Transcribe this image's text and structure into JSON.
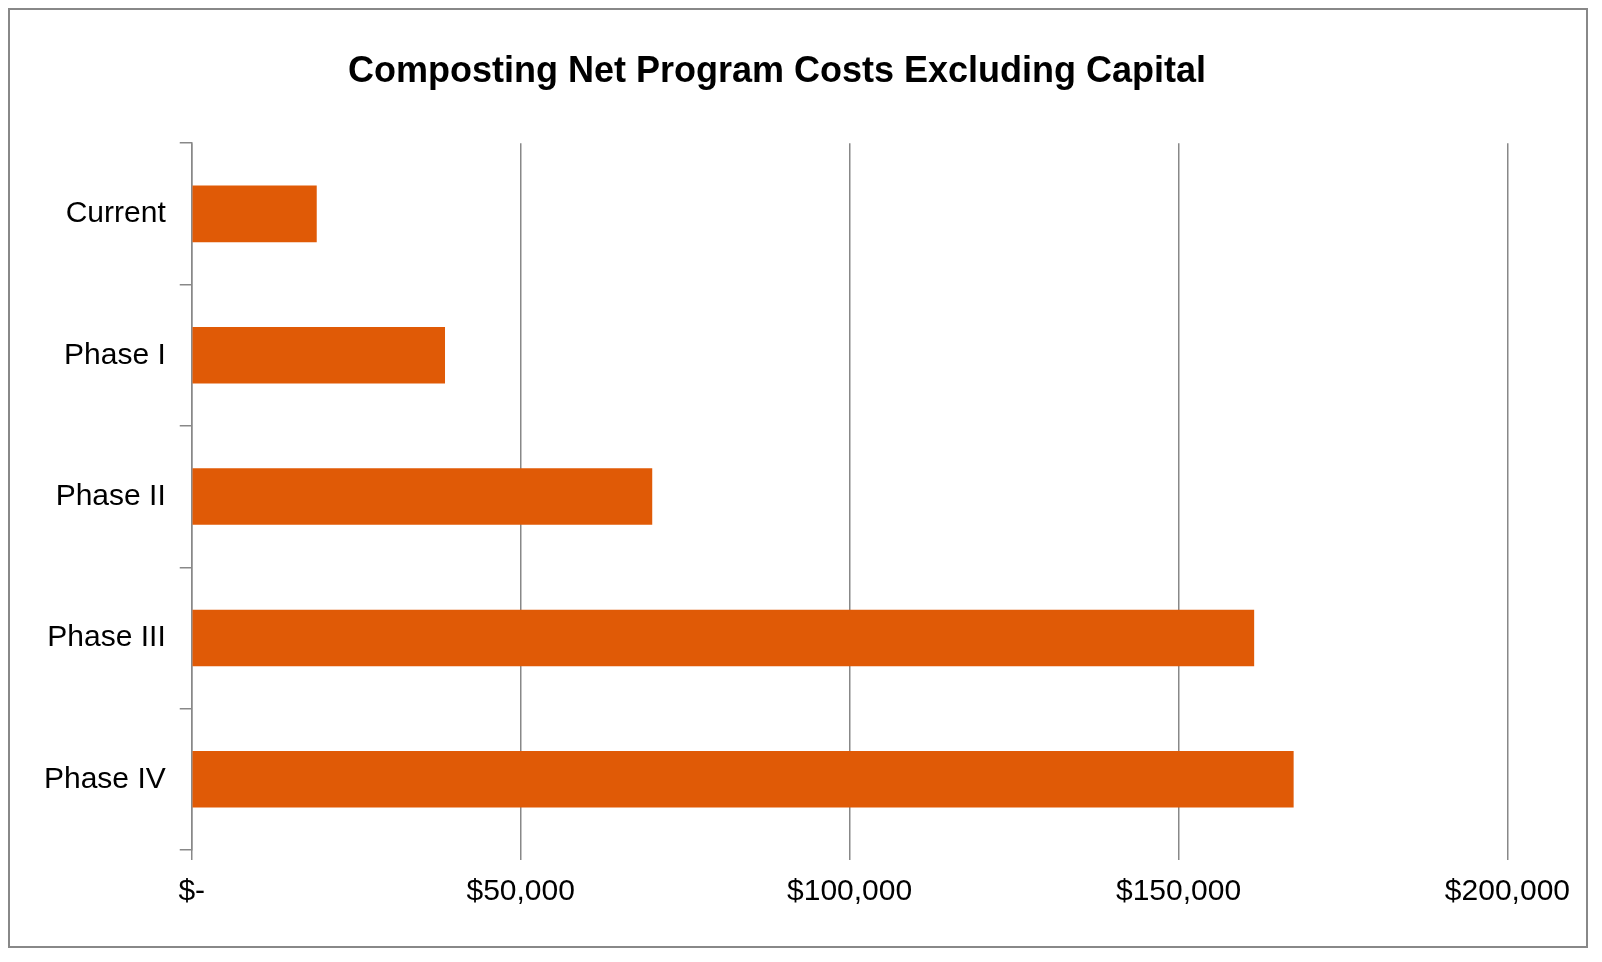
{
  "chart_data": {
    "type": "bar",
    "orientation": "horizontal",
    "title": "Composting Net Program Costs Excluding Capital",
    "categories": [
      "Current",
      "Phase I",
      "Phase II",
      "Phase III",
      "Phase IV"
    ],
    "values": [
      19000,
      38500,
      70000,
      161500,
      167500
    ],
    "color": "#e05a06",
    "xlim": [
      0,
      200000
    ],
    "xticks": [
      {
        "value": 0,
        "label": "$-"
      },
      {
        "value": 50000,
        "label": "$50,000"
      },
      {
        "value": 100000,
        "label": "$100,000"
      },
      {
        "value": 150000,
        "label": "$150,000"
      },
      {
        "value": 200000,
        "label": "$200,000"
      }
    ],
    "grid": "x",
    "legend": false
  }
}
